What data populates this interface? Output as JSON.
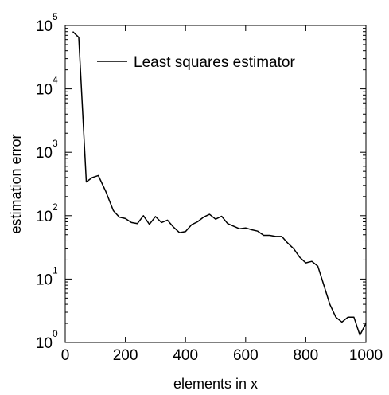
{
  "chart_data": {
    "type": "line",
    "title": "",
    "xlabel": "elements in x",
    "ylabel": "estimation error",
    "xlim": [
      0,
      1000
    ],
    "ylim_log10": [
      0,
      5
    ],
    "yscale": "log",
    "grid": false,
    "legend_position": "top-right",
    "x_ticks": [
      "0",
      "200",
      "400",
      "600",
      "800",
      "1000"
    ],
    "y_ticks": [
      {
        "base": "10",
        "exp": "0"
      },
      {
        "base": "10",
        "exp": "1"
      },
      {
        "base": "10",
        "exp": "2"
      },
      {
        "base": "10",
        "exp": "3"
      },
      {
        "base": "10",
        "exp": "4"
      },
      {
        "base": "10",
        "exp": "5"
      }
    ],
    "series": [
      {
        "name": "Least squares estimator",
        "color": "#000000",
        "x": [
          25,
          45,
          70,
          90,
          110,
          135,
          160,
          180,
          200,
          220,
          240,
          260,
          280,
          300,
          320,
          340,
          360,
          380,
          400,
          420,
          440,
          460,
          480,
          500,
          520,
          540,
          560,
          580,
          600,
          620,
          640,
          660,
          680,
          700,
          720,
          740,
          760,
          780,
          800,
          820,
          840,
          860,
          880,
          900,
          920,
          940,
          960,
          980,
          1000
        ],
        "y": [
          80000,
          65000,
          340,
          400,
          430,
          240,
          120,
          95,
          90,
          78,
          75,
          100,
          73,
          97,
          78,
          85,
          66,
          54,
          56,
          72,
          80,
          95,
          105,
          88,
          98,
          75,
          68,
          62,
          64,
          60,
          57,
          49,
          49,
          47,
          47,
          37,
          30,
          22,
          18,
          19,
          16,
          8,
          4,
          2.5,
          2.1,
          2.5,
          2.5,
          1.3,
          2.0
        ]
      }
    ]
  }
}
